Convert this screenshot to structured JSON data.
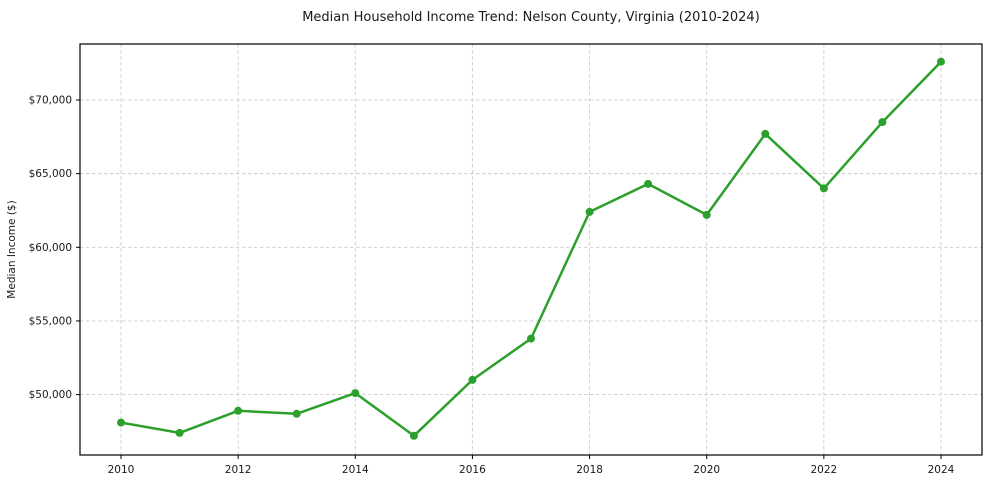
{
  "figure": {
    "background": "#ffffff"
  },
  "chart_data": {
    "type": "line",
    "title": "Median Household Income Trend: Nelson County, Virginia (2010-2024)",
    "xlabel": "",
    "ylabel": "Median Income ($)",
    "x": [
      2010,
      2011,
      2012,
      2013,
      2014,
      2015,
      2016,
      2017,
      2018,
      2019,
      2020,
      2021,
      2022,
      2023,
      2024
    ],
    "series": [
      {
        "name": "Median Household Income",
        "values": [
          48100,
          47400,
          48900,
          48700,
          50100,
          47200,
          51000,
          53800,
          62400,
          64300,
          62200,
          67700,
          64000,
          68500,
          72600
        ],
        "color": "#2ca02c",
        "marker": "circle",
        "marker_size": 8,
        "line_width": 2.5
      }
    ],
    "xlim": [
      2009.3,
      2024.7
    ],
    "ylim": [
      45900,
      73800
    ],
    "xticks": [
      2010,
      2012,
      2014,
      2016,
      2018,
      2020,
      2022,
      2024
    ],
    "yticks": [
      50000,
      55000,
      60000,
      65000,
      70000
    ],
    "ytick_labels": [
      "$50,000",
      "$55,000",
      "$60,000",
      "$65,000",
      "$70,000"
    ],
    "grid": true,
    "grid_style": "dashed",
    "grid_color": "#cccccc",
    "axes_color": "#000000",
    "tick_color": "#000000",
    "text_color": "#1a1a1a",
    "legend": null
  }
}
